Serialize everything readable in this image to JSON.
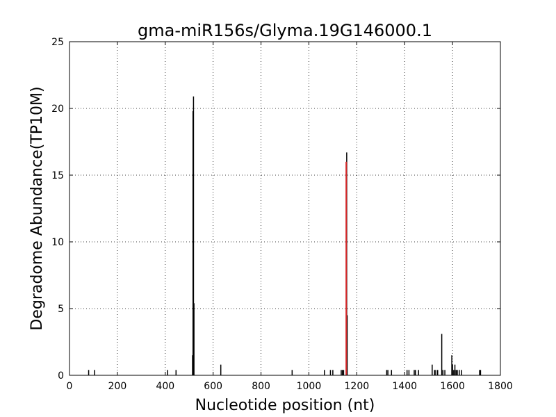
{
  "chart_data": {
    "type": "bar",
    "title": "gma-miR156s/Glyma.19G146000.1",
    "xlabel": "Nucleotide position (nt)",
    "ylabel": "Degradome Abundance(TP10M)",
    "xlim": [
      0,
      1800
    ],
    "ylim": [
      0,
      25
    ],
    "xticks": [
      0,
      200,
      400,
      600,
      800,
      1000,
      1200,
      1400,
      1600,
      1800
    ],
    "yticks": [
      0,
      5,
      10,
      15,
      20,
      25
    ],
    "grid": true,
    "colors": {
      "default": "#000000",
      "highlight": "#d62728"
    },
    "series": [
      {
        "color": "#000000",
        "points": [
          {
            "x": 80,
            "y": 0.4
          },
          {
            "x": 105,
            "y": 0.4
          },
          {
            "x": 410,
            "y": 0.4
          },
          {
            "x": 445,
            "y": 0.4
          },
          {
            "x": 514,
            "y": 1.5
          },
          {
            "x": 516,
            "y": 19.8
          },
          {
            "x": 518,
            "y": 20.9
          },
          {
            "x": 520,
            "y": 5.4
          },
          {
            "x": 632,
            "y": 0.8
          },
          {
            "x": 930,
            "y": 0.4
          },
          {
            "x": 1065,
            "y": 0.4
          },
          {
            "x": 1090,
            "y": 0.4
          },
          {
            "x": 1100,
            "y": 0.4
          },
          {
            "x": 1135,
            "y": 0.4
          },
          {
            "x": 1140,
            "y": 0.4
          },
          {
            "x": 1145,
            "y": 0.4
          },
          {
            "x": 1158,
            "y": 16.7
          },
          {
            "x": 1160,
            "y": 4.5
          },
          {
            "x": 1325,
            "y": 0.4
          },
          {
            "x": 1330,
            "y": 0.4
          },
          {
            "x": 1345,
            "y": 0.4
          },
          {
            "x": 1410,
            "y": 0.4
          },
          {
            "x": 1418,
            "y": 0.4
          },
          {
            "x": 1440,
            "y": 0.4
          },
          {
            "x": 1445,
            "y": 0.4
          },
          {
            "x": 1458,
            "y": 0.4
          },
          {
            "x": 1515,
            "y": 0.8
          },
          {
            "x": 1525,
            "y": 0.4
          },
          {
            "x": 1530,
            "y": 0.4
          },
          {
            "x": 1538,
            "y": 0.4
          },
          {
            "x": 1555,
            "y": 3.1
          },
          {
            "x": 1560,
            "y": 0.4
          },
          {
            "x": 1568,
            "y": 0.4
          },
          {
            "x": 1597,
            "y": 1.5
          },
          {
            "x": 1600,
            "y": 0.8
          },
          {
            "x": 1605,
            "y": 0.4
          },
          {
            "x": 1610,
            "y": 0.8
          },
          {
            "x": 1615,
            "y": 0.4
          },
          {
            "x": 1620,
            "y": 0.4
          },
          {
            "x": 1628,
            "y": 0.4
          },
          {
            "x": 1638,
            "y": 0.4
          },
          {
            "x": 1713,
            "y": 0.4
          },
          {
            "x": 1717,
            "y": 0.4
          }
        ]
      },
      {
        "color": "#d62728",
        "points": [
          {
            "x": 1156,
            "y": 16.0
          }
        ]
      }
    ]
  }
}
